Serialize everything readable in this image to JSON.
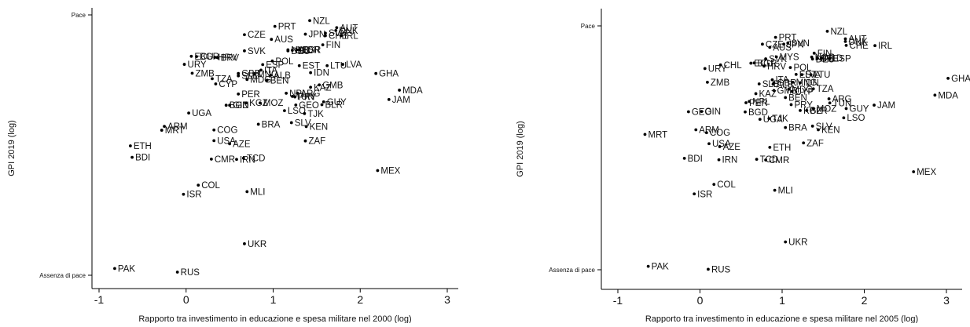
{
  "chart_data": [
    {
      "type": "scatter",
      "title": "",
      "xlabel": "Rapporto tra investimento in educazione e spesa militare nel 2000 (log)",
      "ylabel": "GPI 2019 (log)",
      "xlim": [
        -1.2,
        3.1
      ],
      "ylim": [
        0,
        1
      ],
      "xticks": [
        -1,
        0,
        1,
        2,
        3
      ],
      "y_tick_labels": {
        "top": "Pace",
        "bottom": "Assenza di pace"
      },
      "grid": false,
      "points": [
        {
          "label": "NZL",
          "x": 1.42,
          "y": 0.978
        },
        {
          "label": "PRT",
          "x": 1.02,
          "y": 0.956
        },
        {
          "label": "AUT",
          "x": 1.73,
          "y": 0.951
        },
        {
          "label": "DNK",
          "x": 1.72,
          "y": 0.94
        },
        {
          "label": "SVN",
          "x": 1.6,
          "y": 0.93
        },
        {
          "label": "JPN",
          "x": 1.37,
          "y": 0.926
        },
        {
          "label": "CHE",
          "x": 1.6,
          "y": 0.92
        },
        {
          "label": "IRL",
          "x": 1.78,
          "y": 0.92
        },
        {
          "label": "CZE",
          "x": 0.67,
          "y": 0.924
        },
        {
          "label": "AUS",
          "x": 0.98,
          "y": 0.906
        },
        {
          "label": "FIN",
          "x": 1.57,
          "y": 0.885
        },
        {
          "label": "SVK",
          "x": 0.67,
          "y": 0.862
        },
        {
          "label": "NLD",
          "x": 1.17,
          "y": 0.866
        },
        {
          "label": "DEU",
          "x": 1.17,
          "y": 0.862
        },
        {
          "label": "BEL",
          "x": 1.22,
          "y": 0.864
        },
        {
          "label": "NOR",
          "x": 1.27,
          "y": 0.866
        },
        {
          "label": "ESR",
          "x": 1.3,
          "y": 0.866
        },
        {
          "label": "POL",
          "x": 0.99,
          "y": 0.823
        },
        {
          "label": "ECU",
          "x": 0.06,
          "y": 0.841
        },
        {
          "label": "BGR",
          "x": 0.12,
          "y": 0.84
        },
        {
          "label": "HRV",
          "x": 0.33,
          "y": 0.837
        },
        {
          "label": "BRV",
          "x": 0.36,
          "y": 0.836
        },
        {
          "label": "URY",
          "x": -0.02,
          "y": 0.81
        },
        {
          "label": "ESP",
          "x": 0.88,
          "y": 0.809
        },
        {
          "label": "EST",
          "x": 1.3,
          "y": 0.805
        },
        {
          "label": "LTU",
          "x": 1.62,
          "y": 0.805
        },
        {
          "label": "LVA",
          "x": 1.8,
          "y": 0.81
        },
        {
          "label": "ITA",
          "x": 0.86,
          "y": 0.788
        },
        {
          "label": "IDN",
          "x": 1.43,
          "y": 0.778
        },
        {
          "label": "GHA",
          "x": 2.18,
          "y": 0.775
        },
        {
          "label": "ZMB",
          "x": 0.07,
          "y": 0.776
        },
        {
          "label": "GBR",
          "x": 0.6,
          "y": 0.775
        },
        {
          "label": "MNG",
          "x": 0.78,
          "y": 0.773
        },
        {
          "label": "TZA",
          "x": 0.3,
          "y": 0.755
        },
        {
          "label": "SLE",
          "x": 0.6,
          "y": 0.766
        },
        {
          "label": "ALB",
          "x": 0.97,
          "y": 0.768
        },
        {
          "label": "MDG",
          "x": 0.7,
          "y": 0.752
        },
        {
          "label": "BEN",
          "x": 0.93,
          "y": 0.749
        },
        {
          "label": "CYP",
          "x": 0.34,
          "y": 0.735
        },
        {
          "label": "GMB",
          "x": 1.53,
          "y": 0.731
        },
        {
          "label": "KAZ",
          "x": 1.43,
          "y": 0.722
        },
        {
          "label": "MDA",
          "x": 2.45,
          "y": 0.711
        },
        {
          "label": "PER",
          "x": 0.6,
          "y": 0.696
        },
        {
          "label": "NPL",
          "x": 1.15,
          "y": 0.699
        },
        {
          "label": "ARG",
          "x": 1.28,
          "y": 0.699
        },
        {
          "label": "TUN",
          "x": 1.22,
          "y": 0.687
        },
        {
          "label": "PRY",
          "x": 1.25,
          "y": 0.685
        },
        {
          "label": "JAM",
          "x": 2.33,
          "y": 0.675
        },
        {
          "label": "GUY",
          "x": 1.58,
          "y": 0.666
        },
        {
          "label": "GEO",
          "x": 1.26,
          "y": 0.654
        },
        {
          "label": "BLR",
          "x": 1.56,
          "y": 0.655
        },
        {
          "label": "KGZ",
          "x": 0.69,
          "y": 0.662
        },
        {
          "label": "MOZ",
          "x": 0.85,
          "y": 0.662
        },
        {
          "label": "BGD",
          "x": 0.46,
          "y": 0.653
        },
        {
          "label": "GIN",
          "x": 0.5,
          "y": 0.653
        },
        {
          "label": "LSO",
          "x": 1.13,
          "y": 0.632
        },
        {
          "label": "TJK",
          "x": 1.36,
          "y": 0.621
        },
        {
          "label": "UGA",
          "x": 0.03,
          "y": 0.623
        },
        {
          "label": "SLV",
          "x": 1.21,
          "y": 0.586
        },
        {
          "label": "BRA",
          "x": 0.83,
          "y": 0.58
        },
        {
          "label": "KEN",
          "x": 1.38,
          "y": 0.571
        },
        {
          "label": "ARM",
          "x": -0.25,
          "y": 0.572
        },
        {
          "label": "MRT",
          "x": -0.28,
          "y": 0.557
        },
        {
          "label": "COG",
          "x": 0.32,
          "y": 0.558
        },
        {
          "label": "USA",
          "x": 0.32,
          "y": 0.517
        },
        {
          "label": "AZE",
          "x": 0.5,
          "y": 0.505
        },
        {
          "label": "ZAF",
          "x": 1.37,
          "y": 0.516
        },
        {
          "label": "ETH",
          "x": -0.64,
          "y": 0.497
        },
        {
          "label": "BDI",
          "x": -0.62,
          "y": 0.453
        },
        {
          "label": "CMR",
          "x": 0.29,
          "y": 0.446
        },
        {
          "label": "IRN",
          "x": 0.58,
          "y": 0.445
        },
        {
          "label": "TCD",
          "x": 0.66,
          "y": 0.45
        },
        {
          "label": "MEX",
          "x": 2.2,
          "y": 0.402
        },
        {
          "label": "COL",
          "x": 0.14,
          "y": 0.346
        },
        {
          "label": "MLI",
          "x": 0.7,
          "y": 0.321
        },
        {
          "label": "ISR",
          "x": -0.03,
          "y": 0.311
        },
        {
          "label": "UKR",
          "x": 0.67,
          "y": 0.121
        },
        {
          "label": "PAK",
          "x": -0.82,
          "y": 0.026
        },
        {
          "label": "RUS",
          "x": -0.1,
          "y": 0.012
        }
      ]
    },
    {
      "type": "scatter",
      "title": "",
      "xlabel": "Rapporto tra investimento in educazione e spesa militare nel 2005 (log)",
      "ylabel": "GPI 2019 (log)",
      "xlim": [
        -1.25,
        3.05
      ],
      "ylim": [
        0,
        1
      ],
      "xticks": [
        -1,
        0,
        1,
        2,
        3
      ],
      "y_tick_labels": {
        "top": "Pace",
        "bottom": "Assenza di pace"
      },
      "grid": false,
      "points": [
        {
          "label": "NZL",
          "x": 1.55,
          "y": 0.978
        },
        {
          "label": "PRT",
          "x": 0.92,
          "y": 0.953
        },
        {
          "label": "AUT",
          "x": 1.77,
          "y": 0.947
        },
        {
          "label": "DNK",
          "x": 1.77,
          "y": 0.936
        },
        {
          "label": "IRL",
          "x": 2.13,
          "y": 0.919
        },
        {
          "label": "CHE",
          "x": 1.78,
          "y": 0.92
        },
        {
          "label": "SVN",
          "x": 1.07,
          "y": 0.93
        },
        {
          "label": "JPN",
          "x": 1.02,
          "y": 0.925
        },
        {
          "label": "CZE",
          "x": 0.76,
          "y": 0.925
        },
        {
          "label": "AUS",
          "x": 0.85,
          "y": 0.912
        },
        {
          "label": "FIN",
          "x": 1.39,
          "y": 0.888
        },
        {
          "label": "MYS",
          "x": 0.93,
          "y": 0.873
        },
        {
          "label": "SVK",
          "x": 0.8,
          "y": 0.865
        },
        {
          "label": "NOR",
          "x": 1.36,
          "y": 0.872
        },
        {
          "label": "DEU",
          "x": 1.37,
          "y": 0.864
        },
        {
          "label": "BEL",
          "x": 1.43,
          "y": 0.866
        },
        {
          "label": "NLD",
          "x": 1.48,
          "y": 0.868
        },
        {
          "label": "ESP",
          "x": 1.58,
          "y": 0.866
        },
        {
          "label": "CHL",
          "x": 0.25,
          "y": 0.84
        },
        {
          "label": "ECU",
          "x": 0.62,
          "y": 0.847
        },
        {
          "label": "BGR",
          "x": 0.66,
          "y": 0.848
        },
        {
          "label": "URY",
          "x": 0.06,
          "y": 0.825
        },
        {
          "label": "HRV",
          "x": 0.78,
          "y": 0.835
        },
        {
          "label": "POL",
          "x": 1.1,
          "y": 0.829
        },
        {
          "label": "LTU",
          "x": 1.35,
          "y": 0.8
        },
        {
          "label": "EST",
          "x": 1.17,
          "y": 0.801
        },
        {
          "label": "LVA",
          "x": 1.24,
          "y": 0.8
        },
        {
          "label": "ITA",
          "x": 0.88,
          "y": 0.779
        },
        {
          "label": "GBR",
          "x": 0.9,
          "y": 0.767
        },
        {
          "label": "MNG",
          "x": 1.13,
          "y": 0.769
        },
        {
          "label": "IDN",
          "x": 1.22,
          "y": 0.767
        },
        {
          "label": "ZMB",
          "x": 0.09,
          "y": 0.769
        },
        {
          "label": "SLE",
          "x": 0.72,
          "y": 0.762
        },
        {
          "label": "ALB",
          "x": 0.89,
          "y": 0.761
        },
        {
          "label": "MDG",
          "x": 1.08,
          "y": 0.74
        },
        {
          "label": "TZA",
          "x": 1.38,
          "y": 0.742
        },
        {
          "label": "GMB",
          "x": 0.9,
          "y": 0.735
        },
        {
          "label": "CYP",
          "x": 1.12,
          "y": 0.731
        },
        {
          "label": "BEN",
          "x": 1.04,
          "y": 0.706
        },
        {
          "label": "KAZ",
          "x": 0.68,
          "y": 0.722
        },
        {
          "label": "NPL",
          "x": 0.6,
          "y": 0.69
        },
        {
          "label": "PER",
          "x": 0.56,
          "y": 0.685
        },
        {
          "label": "ARG",
          "x": 1.57,
          "y": 0.701
        },
        {
          "label": "TUN",
          "x": 1.58,
          "y": 0.684
        },
        {
          "label": "PRY",
          "x": 1.11,
          "y": 0.677
        },
        {
          "label": "GUY",
          "x": 1.78,
          "y": 0.661
        },
        {
          "label": "JAM",
          "x": 2.12,
          "y": 0.675
        },
        {
          "label": "MDA",
          "x": 2.86,
          "y": 0.716
        },
        {
          "label": "GHA",
          "x": 3.02,
          "y": 0.785
        },
        {
          "label": "KGZ",
          "x": 1.22,
          "y": 0.653
        },
        {
          "label": "BLR",
          "x": 1.3,
          "y": 0.653
        },
        {
          "label": "MOZ",
          "x": 1.38,
          "y": 0.661
        },
        {
          "label": "LSO",
          "x": 1.75,
          "y": 0.623
        },
        {
          "label": "GEO",
          "x": -0.14,
          "y": 0.648
        },
        {
          "label": "GIN",
          "x": 0.02,
          "y": 0.649
        },
        {
          "label": "BGD",
          "x": 0.55,
          "y": 0.647
        },
        {
          "label": "UGA",
          "x": 0.73,
          "y": 0.617
        },
        {
          "label": "TJK",
          "x": 0.84,
          "y": 0.62
        },
        {
          "label": "BRA",
          "x": 1.04,
          "y": 0.583
        },
        {
          "label": "SLV",
          "x": 1.37,
          "y": 0.589
        },
        {
          "label": "KEN",
          "x": 1.44,
          "y": 0.574
        },
        {
          "label": "ARM",
          "x": -0.05,
          "y": 0.574
        },
        {
          "label": "COG",
          "x": 0.08,
          "y": 0.562
        },
        {
          "label": "MRT",
          "x": -0.67,
          "y": 0.555
        },
        {
          "label": "USA",
          "x": 0.11,
          "y": 0.517
        },
        {
          "label": "AZE",
          "x": 0.24,
          "y": 0.505
        },
        {
          "label": "ETH",
          "x": 0.85,
          "y": 0.502
        },
        {
          "label": "ZAF",
          "x": 1.26,
          "y": 0.52
        },
        {
          "label": "BDI",
          "x": -0.19,
          "y": 0.457
        },
        {
          "label": "IRN",
          "x": 0.23,
          "y": 0.451
        },
        {
          "label": "TCD",
          "x": 0.69,
          "y": 0.453
        },
        {
          "label": "CMR",
          "x": 0.8,
          "y": 0.45
        },
        {
          "label": "MEX",
          "x": 2.6,
          "y": 0.402
        },
        {
          "label": "COL",
          "x": 0.17,
          "y": 0.35
        },
        {
          "label": "ISR",
          "x": -0.07,
          "y": 0.311
        },
        {
          "label": "MLI",
          "x": 0.91,
          "y": 0.326
        },
        {
          "label": "UKR",
          "x": 1.04,
          "y": 0.114
        },
        {
          "label": "PAK",
          "x": -0.63,
          "y": 0.014
        },
        {
          "label": "RUS",
          "x": 0.1,
          "y": 0.002
        }
      ]
    }
  ]
}
